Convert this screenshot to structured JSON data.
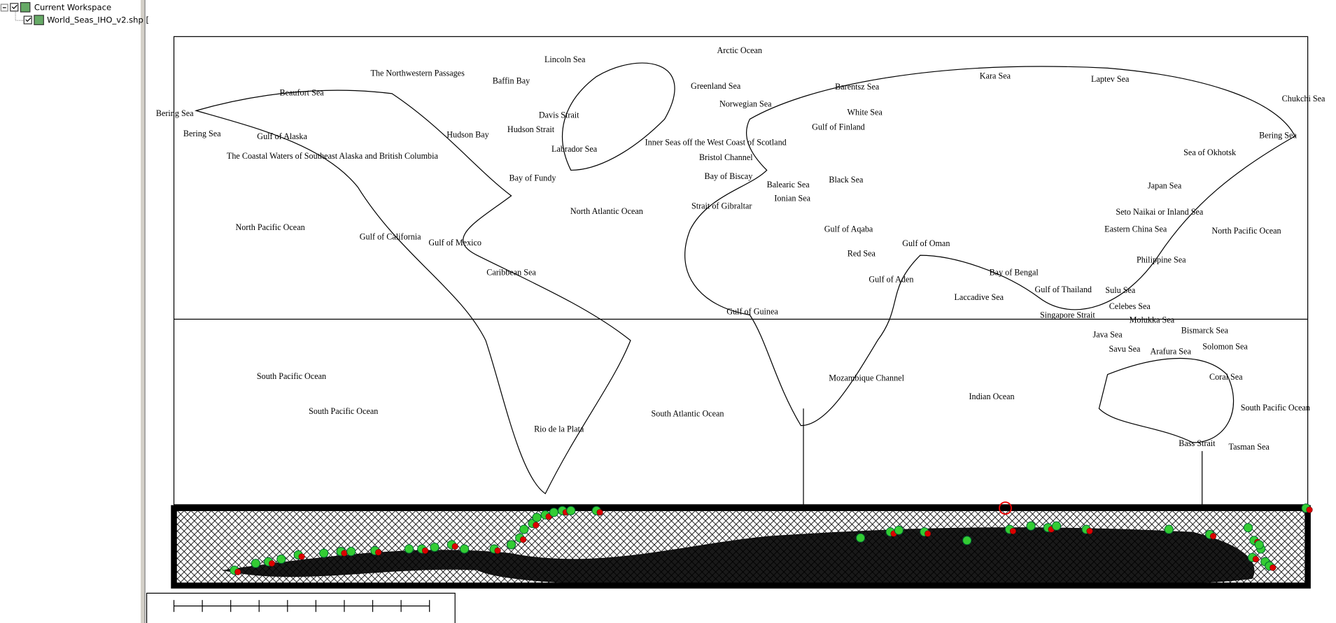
{
  "tree": {
    "items": [
      "Current Workspace",
      "World_Seas_IHO_v2.shp ["
    ]
  },
  "map": {
    "labels": [
      "Arctic Ocean",
      "Beaufort Sea",
      "Bering Sea",
      "Bering Sea",
      "Gulf of Alaska",
      "The Coastal Waters of Southeast Alaska and British Columbia",
      "The Northwestern Passages",
      "Lincoln Sea",
      "Baffin Bay",
      "Davis Strait",
      "Hudson Bay",
      "Hudson Strait",
      "Labrador Sea",
      "Bay of Fundy",
      "Greenland Sea",
      "Norwegian Sea",
      "Barentsz Sea",
      "Kara Sea",
      "Laptev Sea",
      "Chukchi Sea",
      "White Sea",
      "Gulf of Finland",
      "Inner Seas off the West Coast of Scotland",
      "Bristol Channel",
      "Bay of Biscay",
      "Strait of Gibraltar",
      "Balearic Sea",
      "Ionian Sea",
      "Black Sea",
      "North Atlantic Ocean",
      "North Pacific Ocean",
      "Gulf of California",
      "Gulf of Mexico",
      "Caribbean Sea",
      "Gulf of Aqaba",
      "Gulf of Oman",
      "Red Sea",
      "Gulf of Aden",
      "Bay of Bengal",
      "Laccadive Sea",
      "Gulf of Thailand",
      "Sulu Sea",
      "Celebes Sea",
      "Singapore Strait",
      "Molukka Sea",
      "Java Sea",
      "Bismarck Sea",
      "Savu Sea",
      "Arafura Sea",
      "Solomon Sea",
      "Bering Sea",
      "Sea of Okhotsk",
      "Japan Sea",
      "Seto Naikai or Inland Sea",
      "Eastern China Sea",
      "North Pacific Ocean",
      "Philippine Sea",
      "Gulf of Guinea",
      "Mozambique Channel",
      "Indian Ocean",
      "Coral Sea",
      "South Pacific Ocean",
      "Bass Strait",
      "Tasman Sea",
      "South Pacific Ocean",
      "South Pacific Ocean",
      "South Atlantic Ocean",
      "Rio de la Plata"
    ]
  }
}
